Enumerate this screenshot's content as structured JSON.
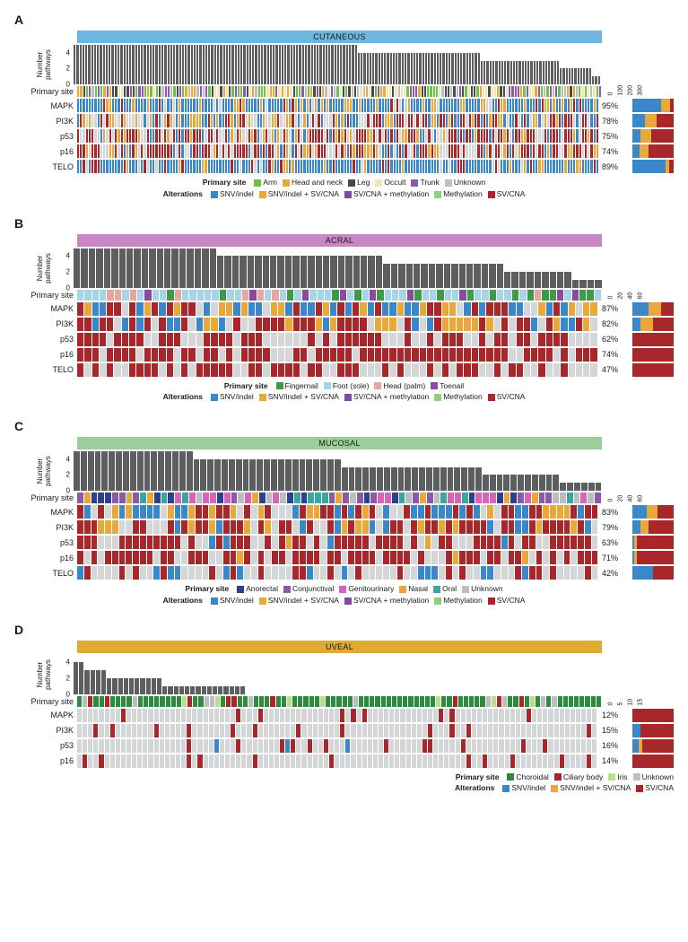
{
  "colors": {
    "none": "#d5d6d7",
    "bar": "#5d5e60",
    "alt": {
      "snv": "#3a87c9",
      "snv_sv": "#e8a93a",
      "sv_me": "#7c4aa0",
      "me": "#8dd17a",
      "sv": "#a8272a"
    }
  },
  "alteration_legend_labels": {
    "snv": "SNV/indel",
    "snv_sv": "SNV/indel + SV/CNA",
    "sv_me": "SV/CNA + methylation",
    "me": "Methylation",
    "sv": "SV/CNA"
  },
  "panels": {
    "A": {
      "letter": "A",
      "title": "CUTANEOUS",
      "title_bg": "#6cb6e4",
      "n": 180,
      "y_ticks": [
        0,
        2,
        4
      ],
      "y_label": "Number\npathways",
      "right_axis_ticks": [
        "0",
        "100",
        "200",
        "300"
      ],
      "pathways": [
        {
          "name": "MAPK",
          "pct": "95%",
          "mini": [
            [
              "#3a87c9",
              0.7
            ],
            [
              "#e8a93a",
              0.22
            ],
            [
              "#a8272a",
              0.08
            ]
          ]
        },
        {
          "name": "PI3K",
          "pct": "78%",
          "mini": [
            [
              "#3a87c9",
              0.3
            ],
            [
              "#e8a93a",
              0.28
            ],
            [
              "#a8272a",
              0.42
            ]
          ]
        },
        {
          "name": "p53",
          "pct": "75%",
          "mini": [
            [
              "#3a87c9",
              0.2
            ],
            [
              "#e8a93a",
              0.25
            ],
            [
              "#a8272a",
              0.55
            ]
          ]
        },
        {
          "name": "p16",
          "pct": "74%",
          "mini": [
            [
              "#3a87c9",
              0.18
            ],
            [
              "#e8a93a",
              0.22
            ],
            [
              "#a8272a",
              0.6
            ]
          ]
        },
        {
          "name": "TELO",
          "pct": "89%",
          "mini": [
            [
              "#3a87c9",
              0.8
            ],
            [
              "#e8a93a",
              0.1
            ],
            [
              "#a8272a",
              0.1
            ]
          ]
        }
      ],
      "primary_site_legend": [
        {
          "label": "Arm",
          "c": "#6fbf4b"
        },
        {
          "label": "Head and neck",
          "c": "#e8a93a"
        },
        {
          "label": "Leg",
          "c": "#4a4a4a"
        },
        {
          "label": "Occult",
          "c": "#f0e6b8"
        },
        {
          "label": "Trunk",
          "c": "#8a5aa8"
        },
        {
          "label": "Unknown",
          "c": "#bdbec0"
        }
      ],
      "primary_site_palette": [
        "#6fbf4b",
        "#e8a93a",
        "#4a4a4a",
        "#f0e6b8",
        "#8a5aa8",
        "#bdbec0"
      ],
      "bars": [
        5,
        5,
        5,
        5,
        5,
        5,
        5,
        5,
        5,
        5,
        5,
        5,
        5,
        5,
        5,
        5,
        5,
        5,
        5,
        5,
        5,
        5,
        5,
        5,
        5,
        5,
        5,
        5,
        5,
        5,
        5,
        5,
        5,
        5,
        5,
        5,
        5,
        5,
        5,
        5,
        5,
        5,
        5,
        5,
        5,
        5,
        5,
        5,
        5,
        5,
        5,
        5,
        5,
        5,
        5,
        5,
        5,
        5,
        5,
        5,
        5,
        5,
        5,
        5,
        5,
        5,
        5,
        5,
        5,
        5,
        5,
        5,
        5,
        5,
        5,
        5,
        5,
        5,
        5,
        5,
        5,
        5,
        5,
        5,
        5,
        5,
        5,
        5,
        5,
        5,
        5,
        5,
        5,
        5,
        5,
        5,
        5,
        4,
        4,
        4,
        4,
        4,
        4,
        4,
        4,
        4,
        4,
        4,
        4,
        4,
        4,
        4,
        4,
        4,
        4,
        4,
        4,
        4,
        4,
        4,
        4,
        4,
        4,
        4,
        4,
        4,
        4,
        4,
        4,
        4,
        4,
        4,
        4,
        4,
        4,
        4,
        4,
        4,
        4,
        3,
        3,
        3,
        3,
        3,
        3,
        3,
        3,
        3,
        3,
        3,
        3,
        3,
        3,
        3,
        3,
        3,
        3,
        3,
        3,
        3,
        3,
        3,
        3,
        3,
        3,
        3,
        2,
        2,
        2,
        2,
        2,
        2,
        2,
        2,
        2,
        2,
        2,
        1,
        1,
        1
      ],
      "alt_seed": 11
    },
    "B": {
      "letter": "B",
      "title": "ACRAL",
      "title_bg": "#c886c2",
      "n": 70,
      "y_ticks": [
        0,
        2,
        4
      ],
      "y_label": "Number\npathways",
      "right_axis_ticks": [
        "0",
        "20",
        "40",
        "60"
      ],
      "pathways": [
        {
          "name": "MAPK",
          "pct": "87%",
          "mini": [
            [
              "#3a87c9",
              0.4
            ],
            [
              "#e8a93a",
              0.3
            ],
            [
              "#a8272a",
              0.3
            ]
          ]
        },
        {
          "name": "PI3K",
          "pct": "82%",
          "mini": [
            [
              "#3a87c9",
              0.2
            ],
            [
              "#e8a93a",
              0.3
            ],
            [
              "#a8272a",
              0.5
            ]
          ]
        },
        {
          "name": "p53",
          "pct": "62%",
          "mini": [
            [
              "#a8272a",
              1.0
            ]
          ]
        },
        {
          "name": "p16",
          "pct": "74%",
          "mini": [
            [
              "#a8272a",
              1.0
            ]
          ]
        },
        {
          "name": "TELO",
          "pct": "47%",
          "mini": [
            [
              "#a8272a",
              1.0
            ]
          ]
        }
      ],
      "primary_site_legend": [
        {
          "label": "Fingernail",
          "c": "#3d9b47"
        },
        {
          "label": "Foot (sole)",
          "c": "#a8d5e5"
        },
        {
          "label": "Head (palm)",
          "c": "#e8a6a0"
        },
        {
          "label": "Toenail",
          "c": "#8a4aa0"
        }
      ],
      "primary_site_palette": [
        "#3d9b47",
        "#a8d5e5",
        "#a8d5e5",
        "#a8d5e5",
        "#e8a6a0",
        "#8a4aa0"
      ],
      "bars": [
        5,
        5,
        5,
        5,
        5,
        5,
        5,
        5,
        5,
        5,
        5,
        5,
        5,
        5,
        5,
        5,
        5,
        5,
        5,
        4,
        4,
        4,
        4,
        4,
        4,
        4,
        4,
        4,
        4,
        4,
        4,
        4,
        4,
        4,
        4,
        4,
        4,
        4,
        4,
        4,
        4,
        3,
        3,
        3,
        3,
        3,
        3,
        3,
        3,
        3,
        3,
        3,
        3,
        3,
        3,
        3,
        3,
        2,
        2,
        2,
        2,
        2,
        2,
        2,
        2,
        2,
        1,
        1,
        1,
        1
      ],
      "alt_seed": 23
    },
    "C": {
      "letter": "C",
      "title": "MUCOSAL",
      "title_bg": "#9cce9c",
      "n": 75,
      "y_ticks": [
        0,
        2,
        4
      ],
      "y_label": "Number\npathways",
      "right_axis_ticks": [
        "0",
        "20",
        "40",
        "60"
      ],
      "pathways": [
        {
          "name": "MAPK",
          "pct": "83%",
          "mini": [
            [
              "#3a87c9",
              0.35
            ],
            [
              "#e8a93a",
              0.25
            ],
            [
              "#a8272a",
              0.4
            ]
          ]
        },
        {
          "name": "PI3K",
          "pct": "79%",
          "mini": [
            [
              "#3a87c9",
              0.2
            ],
            [
              "#e8a93a",
              0.2
            ],
            [
              "#a8272a",
              0.6
            ]
          ]
        },
        {
          "name": "p53",
          "pct": "63%",
          "mini": [
            [
              "#3a87c9",
              0.05
            ],
            [
              "#e8a93a",
              0.05
            ],
            [
              "#a8272a",
              0.9
            ]
          ]
        },
        {
          "name": "p16",
          "pct": "71%",
          "mini": [
            [
              "#3a87c9",
              0.05
            ],
            [
              "#e8a93a",
              0.05
            ],
            [
              "#a8272a",
              0.9
            ]
          ]
        },
        {
          "name": "TELO",
          "pct": "42%",
          "mini": [
            [
              "#3a87c9",
              0.5
            ],
            [
              "#a8272a",
              0.5
            ]
          ]
        }
      ],
      "primary_site_legend": [
        {
          "label": "Anorectal",
          "c": "#2d3f8f"
        },
        {
          "label": "Conjunctival",
          "c": "#8a5aa8"
        },
        {
          "label": "Genitourinary",
          "c": "#d665b8"
        },
        {
          "label": "Nasal",
          "c": "#e8a93a"
        },
        {
          "label": "Oral",
          "c": "#3aa6a0"
        },
        {
          "label": "Unknown",
          "c": "#bdbec0"
        }
      ],
      "primary_site_palette": [
        "#2d3f8f",
        "#8a5aa8",
        "#d665b8",
        "#e8a93a",
        "#3aa6a0",
        "#bdbec0"
      ],
      "bars": [
        5,
        5,
        5,
        5,
        5,
        5,
        5,
        5,
        5,
        5,
        5,
        5,
        5,
        5,
        5,
        5,
        5,
        4,
        4,
        4,
        4,
        4,
        4,
        4,
        4,
        4,
        4,
        4,
        4,
        4,
        4,
        4,
        4,
        4,
        4,
        4,
        4,
        4,
        3,
        3,
        3,
        3,
        3,
        3,
        3,
        3,
        3,
        3,
        3,
        3,
        3,
        3,
        3,
        3,
        3,
        3,
        3,
        3,
        2,
        2,
        2,
        2,
        2,
        2,
        2,
        2,
        2,
        2,
        2,
        1,
        1,
        1,
        1,
        1,
        1
      ],
      "alt_seed": 37
    },
    "D": {
      "letter": "D",
      "title": "UVEAL",
      "title_bg": "#e0a931",
      "n": 95,
      "y_ticks": [
        0,
        2,
        4
      ],
      "y_label": "Number\npathways",
      "right_axis_ticks": [
        "0",
        "5",
        "10",
        "15"
      ],
      "pathways": [
        {
          "name": "MAPK",
          "pct": "12%",
          "mini": [
            [
              "#a8272a",
              1.0
            ]
          ]
        },
        {
          "name": "PI3K",
          "pct": "15%",
          "mini": [
            [
              "#3a87c9",
              0.2
            ],
            [
              "#a8272a",
              0.8
            ]
          ]
        },
        {
          "name": "p53",
          "pct": "16%",
          "mini": [
            [
              "#3a87c9",
              0.15
            ],
            [
              "#e8a93a",
              0.1
            ],
            [
              "#a8272a",
              0.75
            ]
          ]
        },
        {
          "name": "p16",
          "pct": "14%",
          "mini": [
            [
              "#a8272a",
              1.0
            ]
          ]
        }
      ],
      "primary_site_legend": [
        {
          "label": "Choroidal",
          "c": "#2e8b3d"
        },
        {
          "label": "Ciliary body",
          "c": "#a8272a"
        },
        {
          "label": "Iris",
          "c": "#b8e08a"
        },
        {
          "label": "Unknown",
          "c": "#bdbec0"
        }
      ],
      "primary_site_palette": [
        "#2e8b3d",
        "#2e8b3d",
        "#2e8b3d",
        "#2e8b3d",
        "#2e8b3d",
        "#2e8b3d",
        "#a8272a",
        "#b8e08a",
        "#bdbec0"
      ],
      "bars": [
        4,
        4,
        3,
        3,
        3,
        3,
        2,
        2,
        2,
        2,
        2,
        2,
        2,
        2,
        2,
        2,
        1,
        1,
        1,
        1,
        1,
        1,
        1,
        1,
        1,
        1,
        1,
        1,
        1,
        1,
        1,
        0,
        0,
        0,
        0,
        0,
        0,
        0,
        0,
        0,
        0,
        0,
        0,
        0,
        0,
        0,
        0,
        0,
        0,
        0,
        0,
        0,
        0,
        0,
        0,
        0,
        0,
        0,
        0,
        0,
        0,
        0,
        0,
        0,
        0,
        0,
        0,
        0,
        0,
        0,
        0,
        0,
        0,
        0,
        0,
        0,
        0,
        0,
        0,
        0,
        0,
        0,
        0,
        0,
        0,
        0,
        0,
        0,
        0,
        0,
        0,
        0,
        0,
        0,
        0
      ],
      "alt_seed": 51,
      "legend_right_align": true
    }
  }
}
